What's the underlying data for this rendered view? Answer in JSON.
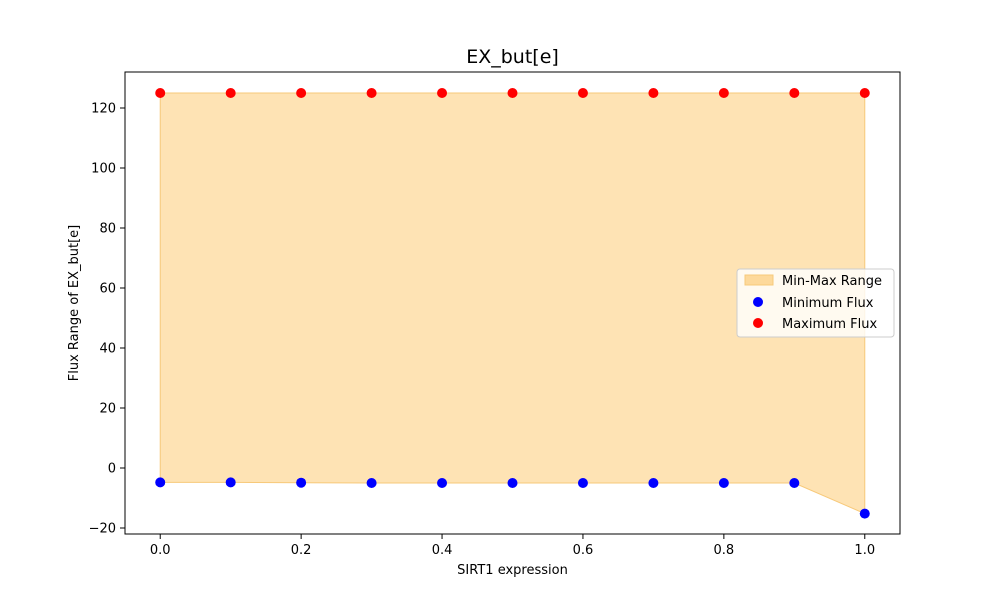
{
  "chart_data": {
    "type": "scatter",
    "title": "EX_but[e]",
    "xlabel": "SIRT1 expression",
    "ylabel": "Flux Range of EX_but[e]",
    "xlim": [
      -0.05,
      1.05
    ],
    "ylim": [
      -22,
      132
    ],
    "xticks": [
      0.0,
      0.2,
      0.4,
      0.6,
      0.8,
      1.0
    ],
    "xtick_labels": [
      "0.0",
      "0.2",
      "0.4",
      "0.6",
      "0.8",
      "1.0"
    ],
    "yticks": [
      -20,
      0,
      20,
      40,
      60,
      80,
      100,
      120
    ],
    "ytick_labels": [
      "−20",
      "0",
      "20",
      "40",
      "60",
      "80",
      "100",
      "120"
    ],
    "x": [
      0.0,
      0.1,
      0.2,
      0.3,
      0.4,
      0.5,
      0.6,
      0.7,
      0.8,
      0.9,
      1.0
    ],
    "series": [
      {
        "name": "Minimum Flux",
        "kind": "scatter",
        "color": "#0000ff",
        "values": [
          -4.8,
          -4.8,
          -4.9,
          -5.0,
          -5.0,
          -5.0,
          -5.0,
          -5.0,
          -5.0,
          -5.0,
          -15.2
        ]
      },
      {
        "name": "Maximum Flux",
        "kind": "scatter",
        "color": "#ff0000",
        "values": [
          125,
          125,
          125,
          125,
          125,
          125,
          125,
          125,
          125,
          125,
          125
        ]
      }
    ],
    "fill": {
      "name": "Min-Max Range",
      "color": "#fdd99b",
      "edge": "#f7c97a",
      "between": [
        "Minimum Flux",
        "Maximum Flux"
      ]
    },
    "grid": false,
    "legend": "center-right"
  }
}
